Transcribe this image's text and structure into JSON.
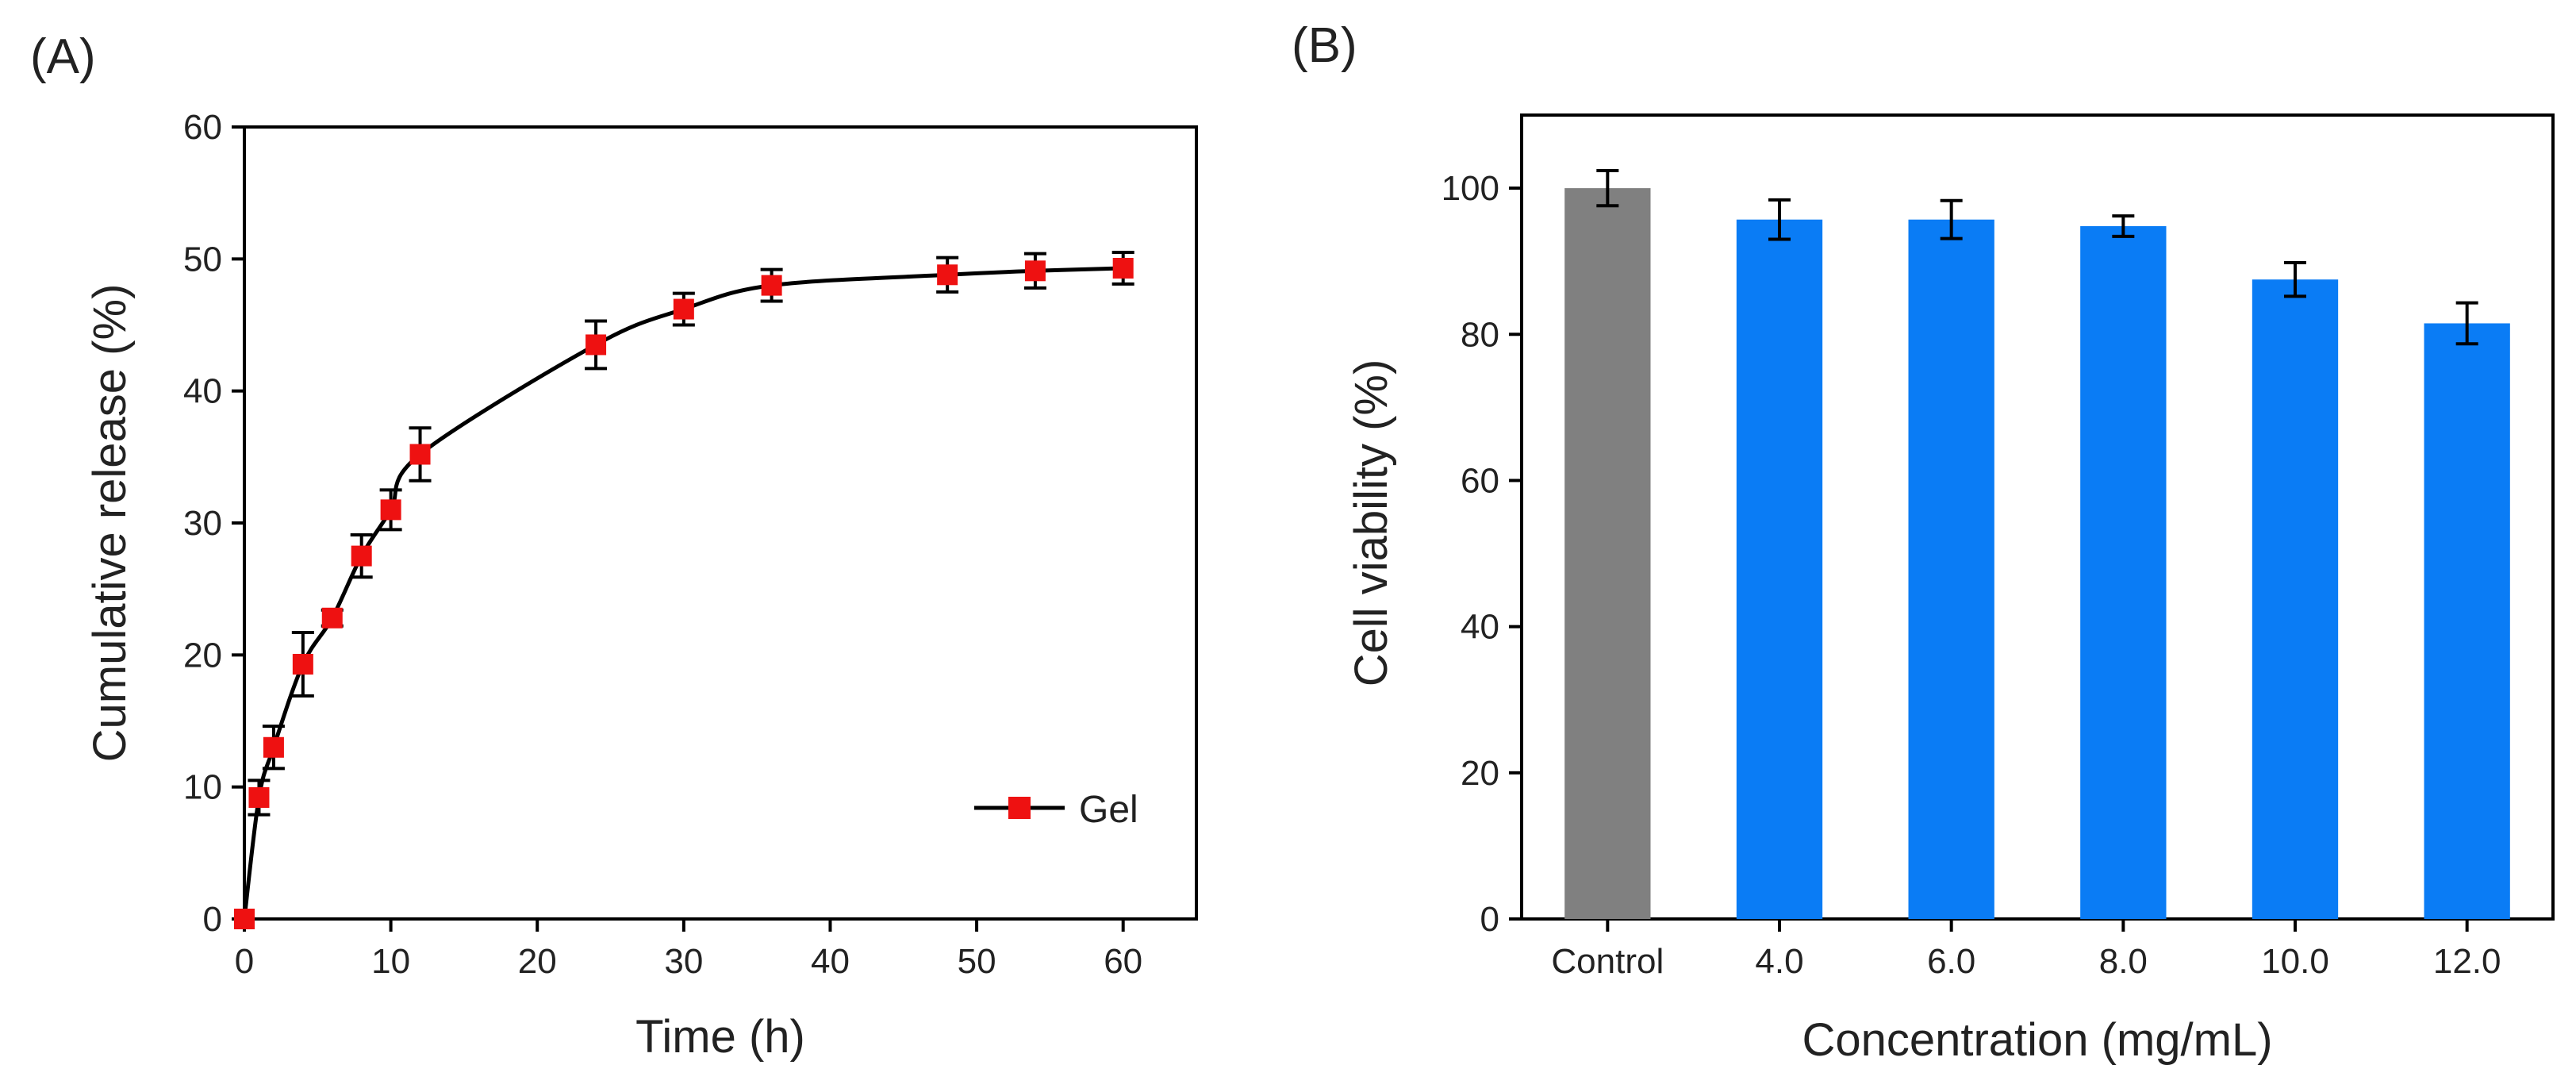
{
  "chart_data": [
    {
      "panel": "(A)",
      "type": "line",
      "title": "",
      "xlabel": "Time (h)",
      "ylabel": "Cumulative release (%)",
      "xlim": [
        0,
        65
      ],
      "ylim": [
        0,
        60
      ],
      "xticks": [
        0,
        10,
        20,
        30,
        40,
        50,
        60
      ],
      "yticks": [
        0,
        10,
        20,
        30,
        40,
        50,
        60
      ],
      "legend": {
        "position": "bottom-right"
      },
      "series": [
        {
          "name": "Gel",
          "line_color": "#000000",
          "marker_color": "#ee1111",
          "x": [
            0,
            1,
            2,
            4,
            6,
            8,
            10,
            12,
            24,
            30,
            36,
            48,
            54,
            60
          ],
          "y": [
            0,
            9.2,
            13.0,
            19.3,
            22.8,
            27.5,
            31.0,
            35.2,
            43.5,
            46.2,
            48.0,
            48.8,
            49.1,
            49.3
          ],
          "err": [
            0,
            1.3,
            1.6,
            2.4,
            0.6,
            1.6,
            1.5,
            2.0,
            1.8,
            1.2,
            1.2,
            1.3,
            1.3,
            1.2
          ]
        }
      ]
    },
    {
      "panel": "(B)",
      "type": "bar",
      "title": "",
      "xlabel": "Concentration (mg/mL)",
      "ylabel": "Cell viability (%)",
      "ylim": [
        0,
        110
      ],
      "yticks": [
        0,
        20,
        40,
        60,
        80,
        100
      ],
      "categories": [
        "Control",
        "4.0",
        "6.0",
        "8.0",
        "10.0",
        "12.0"
      ],
      "values": [
        100.0,
        95.7,
        95.7,
        94.8,
        87.5,
        81.5
      ],
      "errors": [
        2.4,
        2.7,
        2.6,
        1.4,
        2.3,
        2.8
      ],
      "colors": [
        "#808080",
        "#0a7cf5",
        "#0a7cf5",
        "#0a7cf5",
        "#0a7cf5",
        "#0a7cf5"
      ]
    }
  ]
}
